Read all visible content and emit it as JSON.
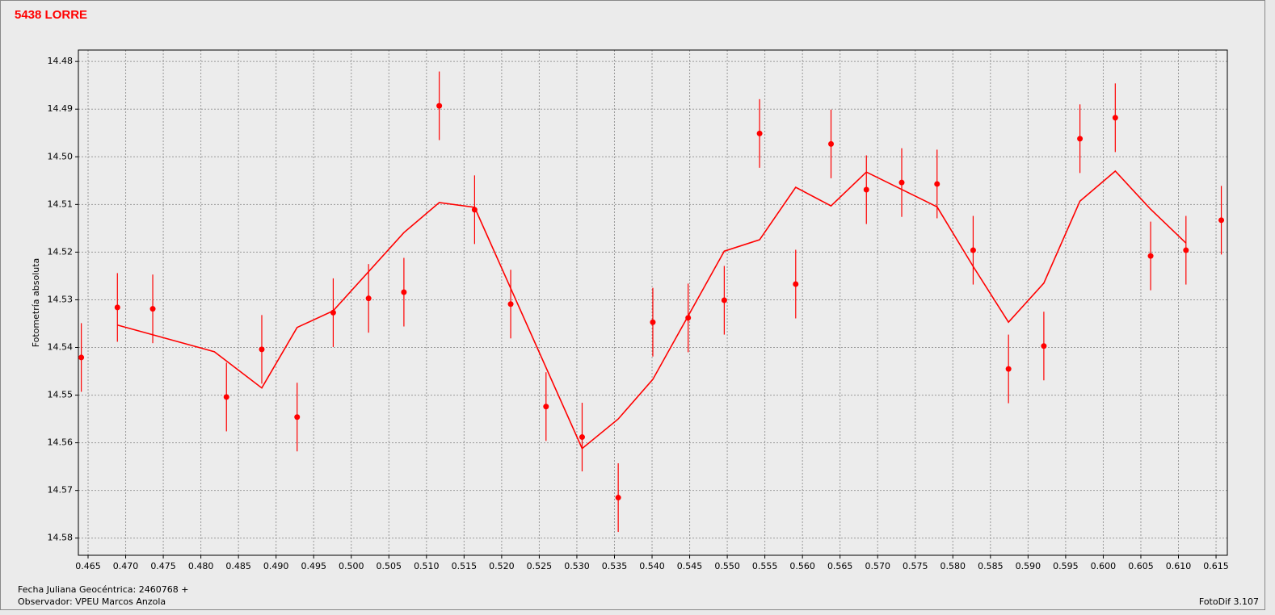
{
  "chart_data": {
    "type": "scatter",
    "title": "5438 LORRE",
    "y_label": "Fotometría absoluta",
    "xlim": [
      0.46371,
      0.6165
    ],
    "ylim": [
      14.5836,
      14.4776
    ],
    "grid": true,
    "xticks": [
      0.465,
      {
        "value": 0.47,
        "label": "0.470"
      },
      0.475,
      {
        "value": 0.48,
        "label": "0.480"
      },
      0.485,
      {
        "value": 0.49,
        "label": "0.490"
      },
      0.495,
      {
        "value": 0.5,
        "label": "0.500"
      },
      0.505,
      {
        "value": 0.51,
        "label": "0.510"
      },
      0.515,
      {
        "value": 0.52,
        "label": "0.520"
      },
      0.525,
      {
        "value": 0.53,
        "label": "0.530"
      },
      0.535,
      {
        "value": 0.54,
        "label": "0.540"
      },
      0.545,
      {
        "value": 0.55,
        "label": "0.550"
      },
      0.555,
      {
        "value": 0.56,
        "label": "0.560"
      },
      0.565,
      {
        "value": 0.57,
        "label": "0.570"
      },
      0.575,
      {
        "value": 0.58,
        "label": "0.580"
      },
      0.585,
      {
        "value": 0.59,
        "label": "0.590"
      },
      0.595,
      {
        "value": 0.6,
        "label": "0.600"
      },
      0.605,
      {
        "value": 0.61,
        "label": "0.610"
      },
      0.615
    ],
    "yticks": [
      14.48,
      14.49,
      {
        "value": 14.5,
        "label": "14.50"
      },
      14.51,
      14.52,
      14.53,
      14.54,
      14.55,
      14.56,
      14.57,
      14.58
    ],
    "series": [
      {
        "type": "scatter",
        "color": "#ff0000",
        "x": [
          0.4641,
          0.4689,
          0.4736,
          0.4834,
          0.4881,
          0.4928,
          0.4976,
          0.5023,
          0.507,
          0.5117,
          0.5164,
          0.5212,
          0.5259,
          0.5307,
          0.5355,
          0.5401,
          0.5448,
          0.5496,
          0.5543,
          0.5591,
          0.5638,
          0.5685,
          0.5732,
          0.5779,
          0.5827,
          0.5874,
          0.5921,
          0.5969,
          0.6016,
          0.6063,
          0.611,
          0.6157
        ],
        "values": [
          14.5421,
          14.5316,
          14.5319,
          14.5504,
          14.5404,
          14.5546,
          14.5327,
          14.5297,
          14.5284,
          14.4893,
          14.5111,
          14.5309,
          14.5524,
          14.5588,
          14.5715,
          14.5347,
          14.5338,
          14.5301,
          14.4951,
          14.5267,
          14.4973,
          14.5069,
          14.5054,
          14.5057,
          14.5196,
          14.5445,
          14.5397,
          14.4962,
          14.4918,
          14.5208,
          14.5196,
          14.5133
        ],
        "errors": [
          0.0072,
          0.0072,
          0.0072,
          0.0072,
          0.0072,
          0.0072,
          0.0072,
          0.0072,
          0.0072,
          0.0072,
          0.0072,
          0.0072,
          0.0072,
          0.0072,
          0.0072,
          0.0072,
          0.0072,
          0.0072,
          0.0072,
          0.0072,
          0.0072,
          0.0072,
          0.0072,
          0.0072,
          0.0072,
          0.0072,
          0.0072,
          0.0072,
          0.0072,
          0.0072,
          0.0072,
          0.0072
        ]
      },
      {
        "type": "line",
        "color": "#ff0000",
        "x": [
          0.4689,
          0.4818,
          0.4881,
          0.4928,
          0.4976,
          0.507,
          0.5117,
          0.5164,
          0.5307,
          0.5355,
          0.5401,
          0.5496,
          0.5543,
          0.5591,
          0.5638,
          0.5685,
          0.5779,
          0.5827,
          0.5874,
          0.5921,
          0.5969,
          0.6016,
          0.6063,
          0.611
        ],
        "values": [
          14.5353,
          14.5409,
          14.5485,
          14.5358,
          14.5323,
          14.5159,
          14.5096,
          14.5106,
          14.5612,
          14.555,
          14.5467,
          14.5198,
          14.5174,
          14.5064,
          14.5103,
          14.5032,
          14.5105,
          14.523,
          14.5347,
          14.5265,
          14.5093,
          14.503,
          14.511,
          14.5181
        ]
      }
    ]
  },
  "footer": {
    "date_note": "Fecha Juliana Geocéntrica: 2460768 +",
    "observer": "Observador: VPEU Marcos Anzola",
    "software": "FotoDif 3.107"
  }
}
